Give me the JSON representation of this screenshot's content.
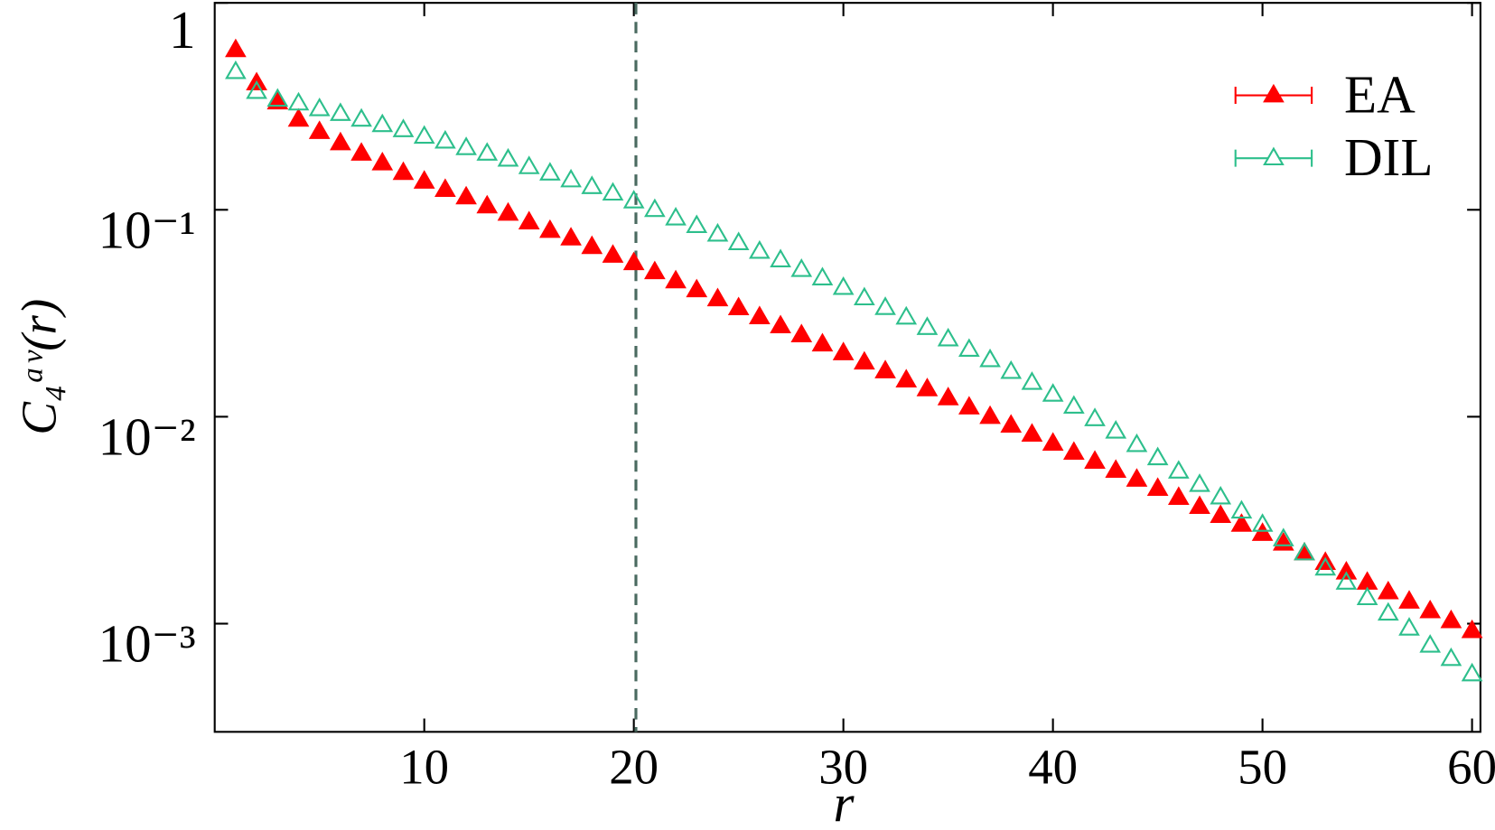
{
  "chart_data": {
    "type": "scatter",
    "xlabel": "r",
    "ylabel": "C₄ᵃᵛ(r)",
    "x": [
      1,
      2,
      3,
      4,
      5,
      6,
      7,
      8,
      9,
      10,
      11,
      12,
      13,
      14,
      15,
      16,
      17,
      18,
      19,
      20,
      21,
      22,
      23,
      24,
      25,
      26,
      27,
      28,
      29,
      30,
      31,
      32,
      33,
      34,
      35,
      36,
      37,
      38,
      39,
      40,
      41,
      42,
      43,
      44,
      45,
      46,
      47,
      48,
      49,
      50,
      51,
      52,
      53,
      54,
      55,
      56,
      57,
      58,
      59,
      60
    ],
    "series": [
      {
        "name": "EA",
        "color": "#ff0000",
        "filled": true,
        "values": [
          0.592,
          0.409,
          0.331,
          0.273,
          0.238,
          0.21,
          0.187,
          0.168,
          0.151,
          0.137,
          0.125,
          0.115,
          0.104,
          0.0959,
          0.0871,
          0.0792,
          0.0728,
          0.0662,
          0.0601,
          0.0553,
          0.05,
          0.0452,
          0.0409,
          0.037,
          0.0335,
          0.0303,
          0.0274,
          0.0248,
          0.0224,
          0.0203,
          0.0183,
          0.0166,
          0.015,
          0.0136,
          0.0123,
          0.0111,
          0.01,
          0.00907,
          0.00821,
          0.00742,
          0.00671,
          0.00607,
          0.00549,
          0.00497,
          0.00449,
          0.00406,
          0.00367,
          0.00332,
          0.00301,
          0.00272,
          0.00244,
          0.00219,
          0.00197,
          0.00177,
          0.00158,
          0.00142,
          0.00128,
          0.00115,
          0.00103,
          0.000922
        ]
      },
      {
        "name": "DIL",
        "color": "#2dbf8c",
        "filled": false,
        "values": [
          0.464,
          0.372,
          0.341,
          0.327,
          0.307,
          0.291,
          0.273,
          0.257,
          0.243,
          0.226,
          0.214,
          0.199,
          0.187,
          0.175,
          0.161,
          0.15,
          0.139,
          0.129,
          0.12,
          0.11,
          0.1,
          0.091,
          0.0836,
          0.076,
          0.0691,
          0.0628,
          0.0571,
          0.0513,
          0.0467,
          0.042,
          0.0374,
          0.0336,
          0.0302,
          0.0269,
          0.0237,
          0.0211,
          0.0188,
          0.0165,
          0.0146,
          0.0128,
          0.0112,
          0.00975,
          0.00849,
          0.00731,
          0.00631,
          0.00544,
          0.00469,
          0.00408,
          0.00349,
          0.00301,
          0.00256,
          0.00219,
          0.00185,
          0.00158,
          0.00133,
          0.00112,
          0.000948,
          0.000784,
          0.000676,
          0.00057
        ]
      }
    ],
    "xlim": [
      0,
      60.4
    ],
    "xticks": [
      10,
      20,
      30,
      40,
      50,
      60
    ],
    "ylim": [
      0.0003,
      1
    ],
    "log_y": true,
    "yticks": [
      1,
      {
        "value": 0.1,
        "label": "10⁻¹"
      },
      {
        "value": 0.01,
        "label": "10⁻²"
      },
      {
        "value": 0.001,
        "label": "10⁻³"
      }
    ],
    "vline": 20.1,
    "vline_color": "#4a6a60",
    "legend": "upper right"
  }
}
